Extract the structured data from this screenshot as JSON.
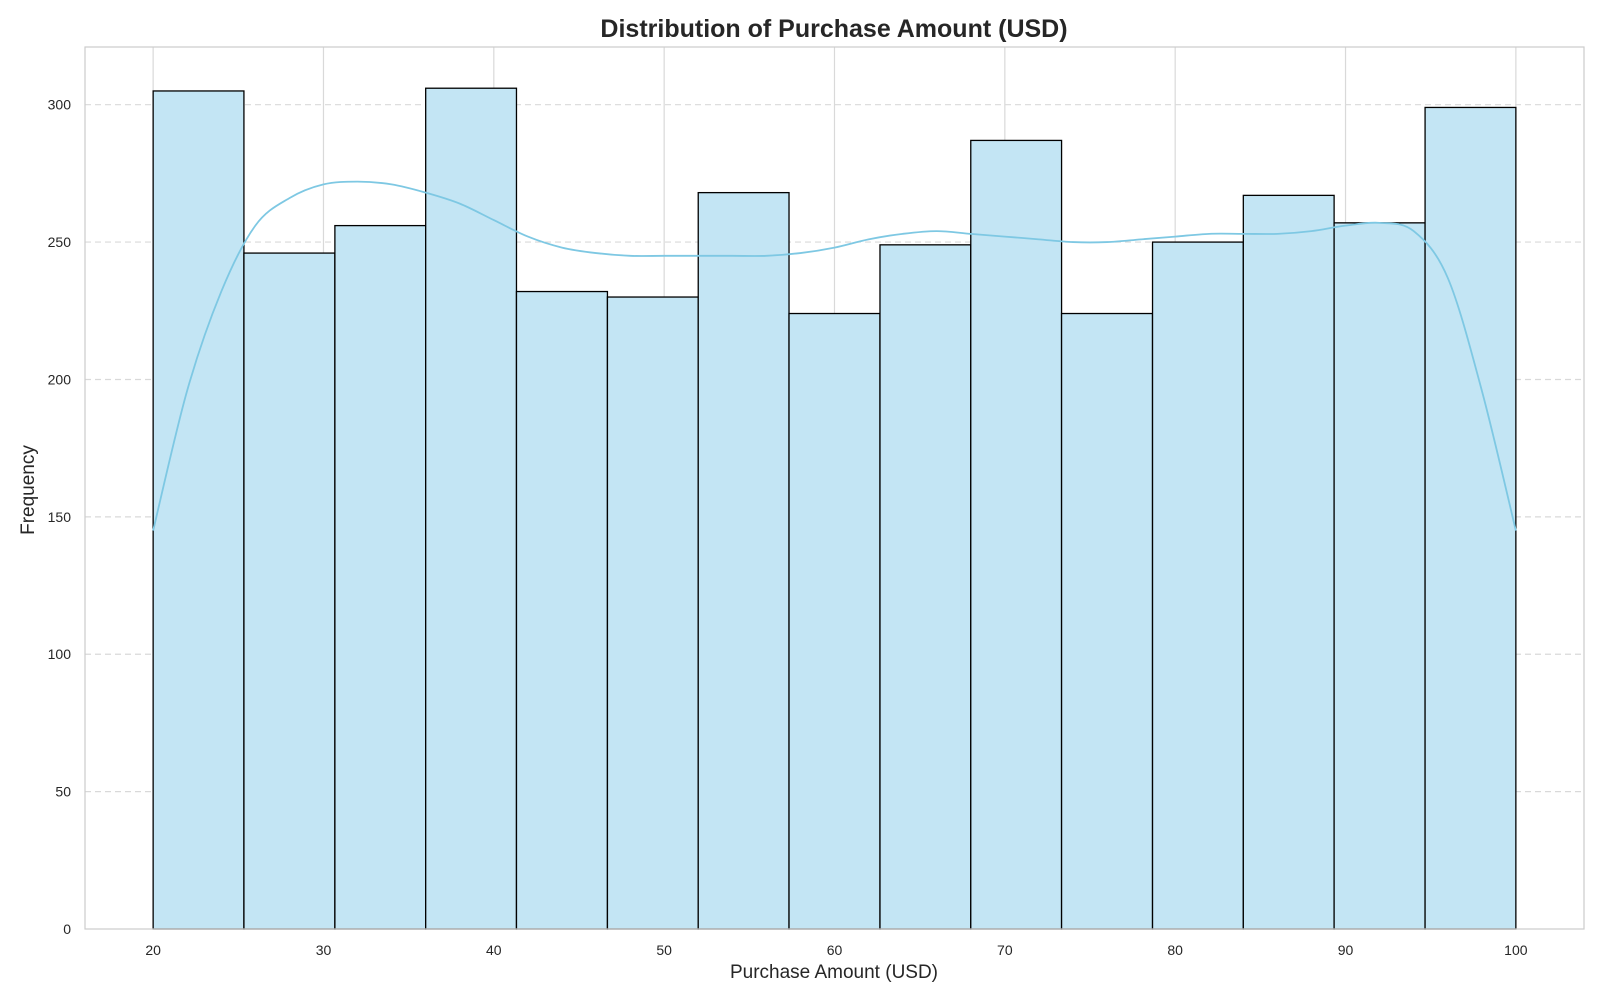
{
  "chart_data": {
    "type": "bar",
    "title": "Distribution of Purchase Amount (USD)",
    "xlabel": "Purchase Amount (USD)",
    "ylabel": "Frequency",
    "xlim": [
      16,
      104
    ],
    "ylim": [
      0,
      321
    ],
    "xticks": [
      "20",
      "30",
      "40",
      "50",
      "60",
      "70",
      "80",
      "90",
      "100"
    ],
    "yticks": [
      "0",
      "50",
      "100",
      "150",
      "200",
      "250",
      "300"
    ],
    "bin_edges": [
      20,
      25.33,
      30.67,
      36,
      41.33,
      46.67,
      52,
      57.33,
      62.67,
      68,
      73.33,
      78.67,
      84,
      89.33,
      94.67,
      100
    ],
    "values": [
      305,
      246,
      256,
      306,
      232,
      230,
      268,
      224,
      249,
      287,
      224,
      250,
      267,
      257,
      299
    ],
    "kde": {
      "x": [
        20,
        22,
        24,
        26,
        28,
        30,
        32,
        34,
        36,
        38,
        40,
        42,
        44,
        46,
        48,
        50,
        52,
        54,
        56,
        58,
        60,
        62,
        64,
        66,
        68,
        70,
        72,
        74,
        76,
        78,
        80,
        82,
        84,
        86,
        88,
        90,
        92,
        94,
        96,
        98,
        100
      ],
      "y": [
        145,
        196,
        232,
        256,
        266,
        271,
        272,
        271,
        268,
        264,
        258,
        252,
        248,
        246,
        245,
        245,
        245,
        245,
        245,
        246,
        248,
        251,
        253,
        254,
        253,
        252,
        251,
        250,
        250,
        251,
        252,
        253,
        253,
        253,
        254,
        256,
        257,
        254,
        237,
        196,
        145
      ]
    },
    "grid": {
      "x": true,
      "y": true,
      "y_style": "dashed"
    },
    "colors": {
      "bar_fill": "#c3e5f4",
      "bar_edge": "#000000",
      "kde_line": "#7ec8e3",
      "grid": "#d9d9d9",
      "axes_edge": "#cccccc",
      "text": "#262626"
    }
  }
}
